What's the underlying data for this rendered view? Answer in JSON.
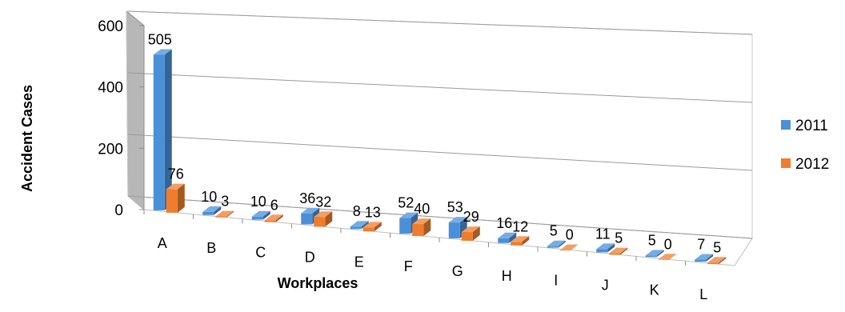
{
  "chart_data": {
    "type": "bar",
    "categories": [
      "A",
      "B",
      "C",
      "D",
      "E",
      "F",
      "G",
      "H",
      "I",
      "J",
      "K",
      "L"
    ],
    "series": [
      {
        "name": "2011",
        "values": [
          505,
          10,
          10,
          36,
          8,
          52,
          53,
          16,
          5,
          11,
          5,
          7
        ],
        "color": "#4a90d9"
      },
      {
        "name": "2012",
        "values": [
          76,
          3,
          6,
          32,
          13,
          40,
          29,
          12,
          0,
          5,
          0,
          5
        ],
        "color": "#ef7d2d"
      }
    ],
    "xlabel": "Workplaces",
    "ylabel": "Accident Cases",
    "ylim": [
      0,
      600
    ],
    "yticks": [
      0,
      200,
      400,
      600
    ],
    "grid": true,
    "legend_position": "right",
    "style": "3d-clustered-column"
  }
}
